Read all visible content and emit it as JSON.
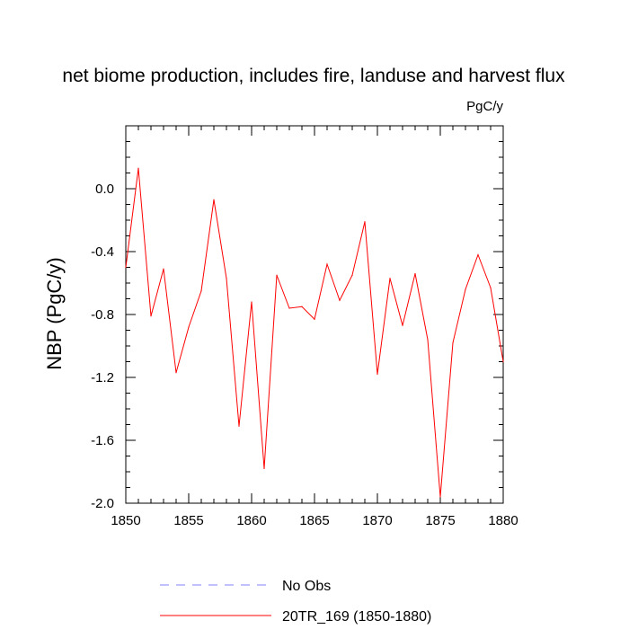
{
  "chart_data": {
    "type": "line",
    "title": "net biome production, includes fire, landuse and harvest flux",
    "units": "PgC/y",
    "ylabel": "NBP  (PgC/y)",
    "xlabel": "",
    "xlim": [
      1850,
      1880
    ],
    "ylim": [
      -2.0,
      0.4
    ],
    "xticks": [
      1850,
      1855,
      1860,
      1865,
      1870,
      1875,
      1880
    ],
    "xtick_labels": [
      "1850",
      "1855",
      "1860",
      "1865",
      "1870",
      "1875",
      "1880"
    ],
    "yticks": [
      -2.0,
      -1.6,
      -1.2,
      -0.8,
      -0.4,
      0.0
    ],
    "ytick_labels": [
      "-2.0",
      "-1.6",
      "-1.2",
      "-0.8",
      "-0.4",
      "0.0"
    ],
    "grid": false,
    "legend_placement": "bottom",
    "series": [
      {
        "name": "No Obs",
        "color": "#8080ff",
        "dashed": true,
        "x": [],
        "values": []
      },
      {
        "name": "20TR_169 (1850-1880)",
        "color": "#ff0000",
        "dashed": false,
        "x": [
          1850,
          1851,
          1852,
          1853,
          1854,
          1855,
          1856,
          1857,
          1858,
          1859,
          1860,
          1861,
          1862,
          1863,
          1864,
          1865,
          1866,
          1867,
          1868,
          1869,
          1870,
          1871,
          1872,
          1873,
          1874,
          1875,
          1876,
          1877,
          1878,
          1879,
          1880
        ],
        "values": [
          -0.5,
          0.13,
          -0.81,
          -0.51,
          -1.17,
          -0.88,
          -0.65,
          -0.07,
          -0.57,
          -1.51,
          -0.72,
          -1.78,
          -0.55,
          -0.76,
          -0.75,
          -0.83,
          -0.48,
          -0.71,
          -0.55,
          -0.21,
          -1.18,
          -0.57,
          -0.87,
          -0.54,
          -0.96,
          -1.96,
          -0.98,
          -0.64,
          -0.42,
          -0.63,
          -1.1
        ]
      }
    ]
  }
}
